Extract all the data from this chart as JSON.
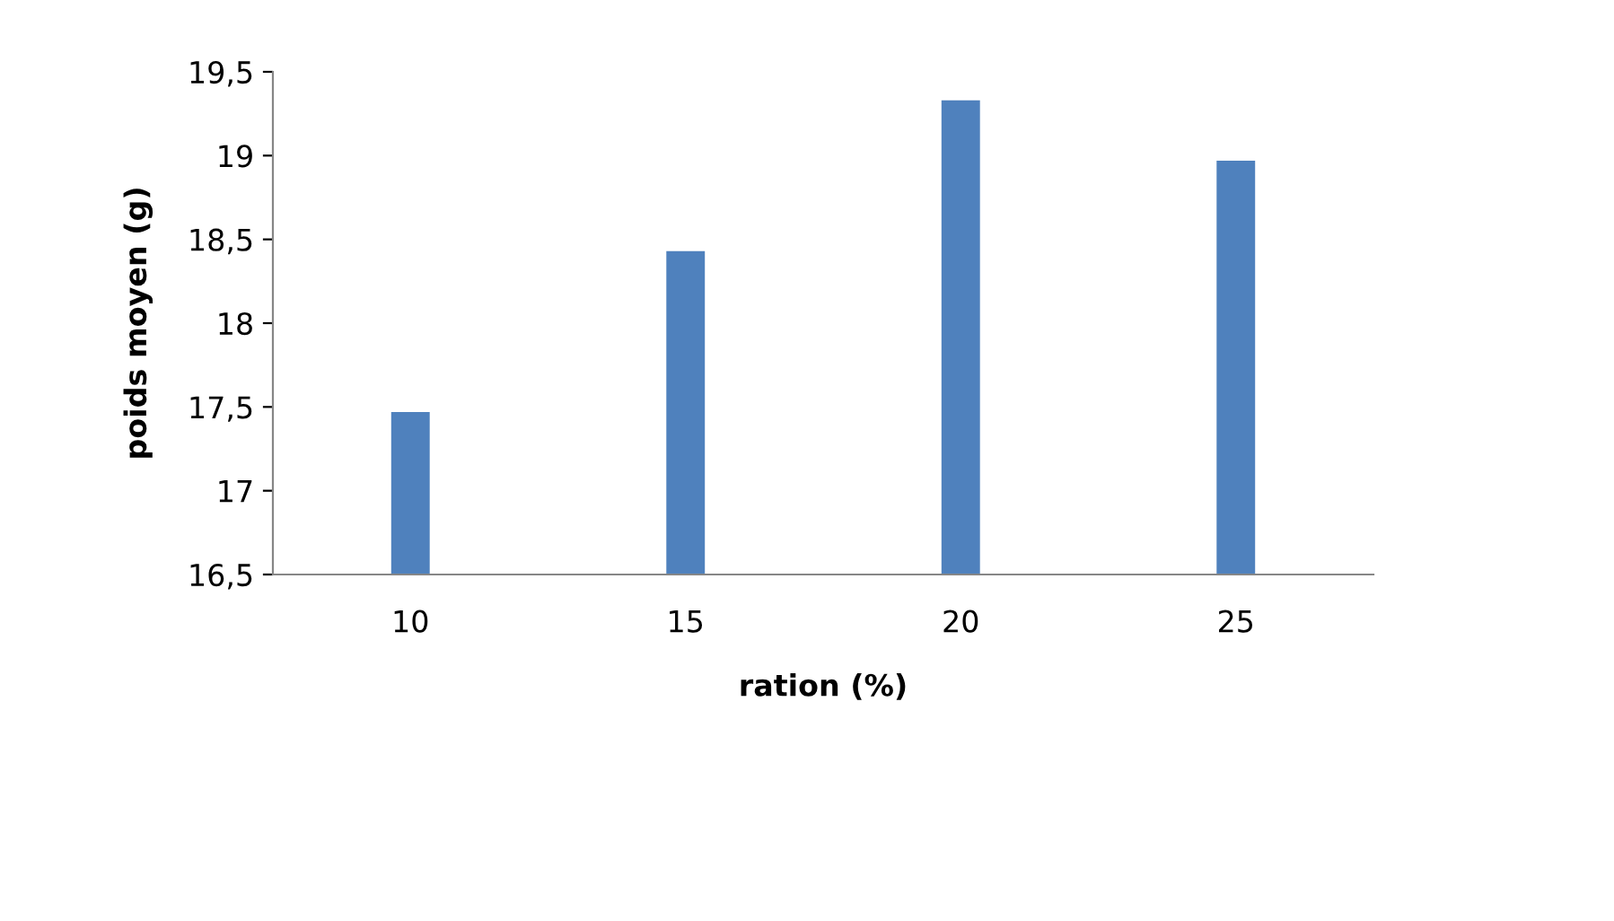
{
  "chart_data": {
    "type": "bar",
    "xlabel": "ration (%)",
    "ylabel": "poids moyen (g)",
    "categories": [
      "10",
      "15",
      "20",
      "25"
    ],
    "values": [
      17.47,
      18.43,
      19.33,
      18.97
    ],
    "color": "#4f81bd",
    "ylim": [
      16.5,
      19.5
    ],
    "yticks": [
      {
        "value": 16.5,
        "label": "16,5"
      },
      {
        "value": 17,
        "label": "17"
      },
      {
        "value": 17.5,
        "label": "17,5"
      },
      {
        "value": 18,
        "label": "18"
      },
      {
        "value": 18.5,
        "label": "18,5"
      },
      {
        "value": 19,
        "label": "19"
      },
      {
        "value": 19.5,
        "label": "19,5"
      }
    ],
    "grid": false
  }
}
